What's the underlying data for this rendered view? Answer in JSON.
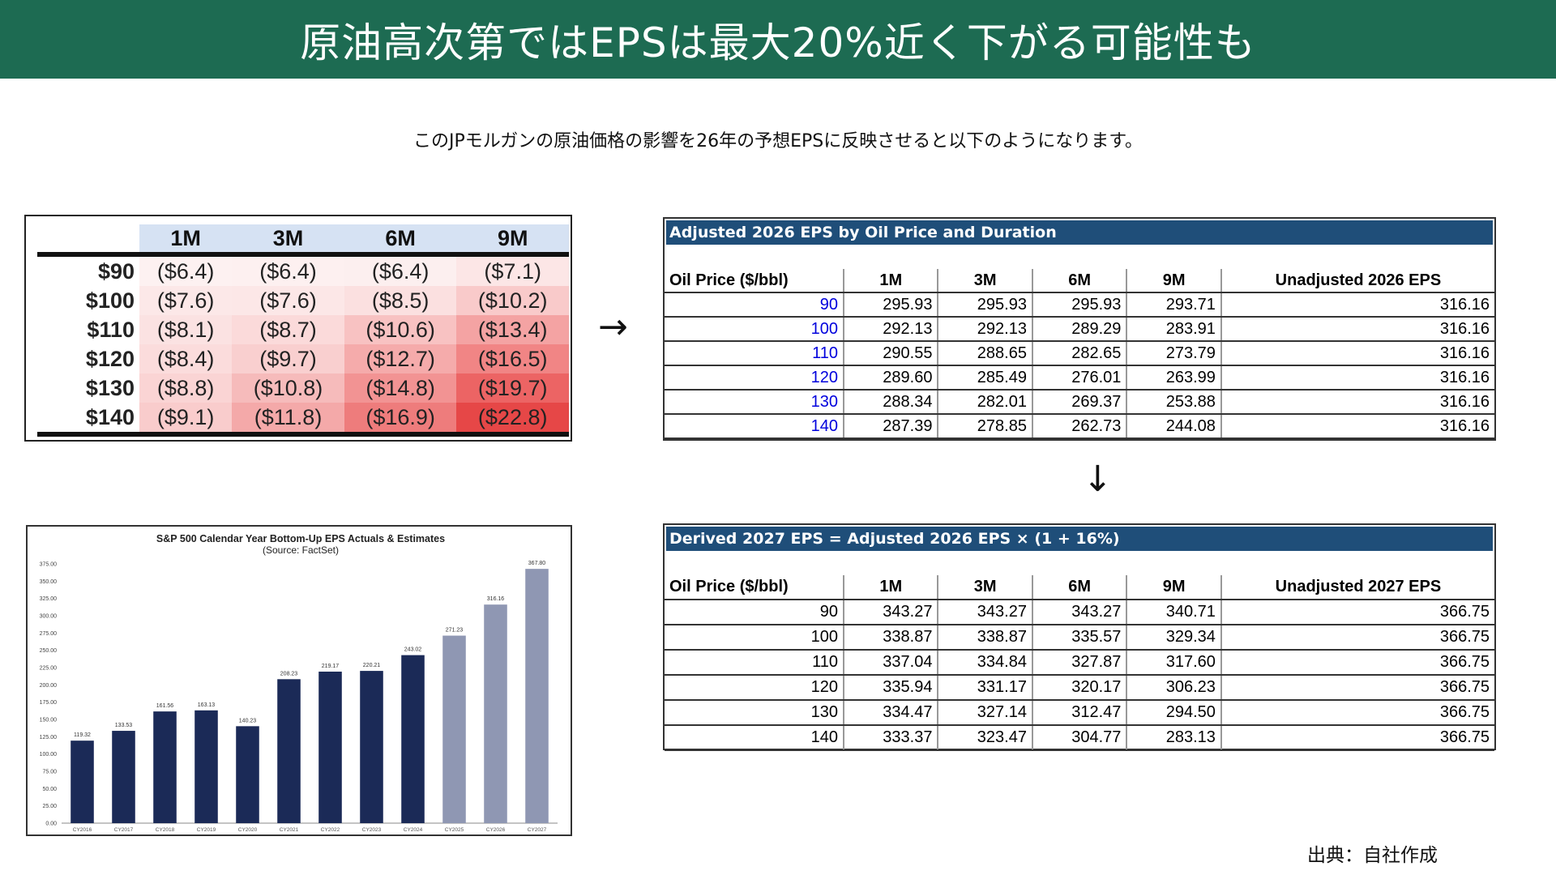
{
  "title": "原油高次第ではEPSは最大20%近く下がる可能性も",
  "subtitle": "このJPモルガンの原油価格の影響を26年の予想EPSに反映させると以下のようになります。",
  "arrows": {
    "right": "→",
    "down": "↓"
  },
  "sensitivity": {
    "headers": [
      "1M",
      "3M",
      "6M",
      "9M"
    ],
    "rows": [
      {
        "label": "$90",
        "cells": [
          "($6.4)",
          "($6.4)",
          "($6.4)",
          "($7.1)"
        ]
      },
      {
        "label": "$100",
        "cells": [
          "($7.6)",
          "($7.6)",
          "($8.5)",
          "($10.2)"
        ]
      },
      {
        "label": "$110",
        "cells": [
          "($8.1)",
          "($8.7)",
          "($10.6)",
          "($13.4)"
        ]
      },
      {
        "label": "$120",
        "cells": [
          "($8.4)",
          "($9.7)",
          "($12.7)",
          "($16.5)"
        ]
      },
      {
        "label": "$130",
        "cells": [
          "($8.8)",
          "($10.8)",
          "($14.8)",
          "($19.7)"
        ]
      },
      {
        "label": "$140",
        "cells": [
          "($9.1)",
          "($11.8)",
          "($16.9)",
          "($22.8)"
        ]
      }
    ],
    "heat_colors": [
      [
        "#fdf1f1",
        "#fdf0f0",
        "#fcefef",
        "#fce6e6"
      ],
      [
        "#fce8e8",
        "#fce7e7",
        "#fbe0e0",
        "#f9caca"
      ],
      [
        "#fbe2e2",
        "#fbdada",
        "#f8c2c2",
        "#f4a3a3"
      ],
      [
        "#fbdcdc",
        "#f9cfcf",
        "#f5abab",
        "#f18585"
      ],
      [
        "#fad4d4",
        "#f6bbbb",
        "#f29393",
        "#ec6464"
      ],
      [
        "#f9cccc",
        "#f4a9a9",
        "#ee7c7c",
        "#e64747"
      ]
    ]
  },
  "adjusted_2026": {
    "header": "Adjusted 2026 EPS by Oil Price and Duration",
    "columns": [
      "Oil Price ($/bbl)",
      "1M",
      "3M",
      "6M",
      "9M",
      "Unadjusted 2026 EPS"
    ],
    "rows": [
      [
        "90",
        "295.93",
        "295.93",
        "295.93",
        "293.71",
        "316.16"
      ],
      [
        "100",
        "292.13",
        "292.13",
        "289.29",
        "283.91",
        "316.16"
      ],
      [
        "110",
        "290.55",
        "288.65",
        "282.65",
        "273.79",
        "316.16"
      ],
      [
        "120",
        "289.60",
        "285.49",
        "276.01",
        "263.99",
        "316.16"
      ],
      [
        "130",
        "288.34",
        "282.01",
        "269.37",
        "253.88",
        "316.16"
      ],
      [
        "140",
        "287.39",
        "278.85",
        "262.73",
        "244.08",
        "316.16"
      ]
    ]
  },
  "derived_2027": {
    "header": "Derived 2027 EPS = Adjusted 2026 EPS × (1 + 16%)",
    "columns": [
      "Oil Price ($/bbl)",
      "1M",
      "3M",
      "6M",
      "9M",
      "Unadjusted 2027 EPS"
    ],
    "rows": [
      [
        "90",
        "343.27",
        "343.27",
        "343.27",
        "340.71",
        "366.75"
      ],
      [
        "100",
        "338.87",
        "338.87",
        "335.57",
        "329.34",
        "366.75"
      ],
      [
        "110",
        "337.04",
        "334.84",
        "327.87",
        "317.60",
        "366.75"
      ],
      [
        "120",
        "335.94",
        "331.17",
        "320.17",
        "306.23",
        "366.75"
      ],
      [
        "130",
        "334.47",
        "327.14",
        "312.47",
        "294.50",
        "366.75"
      ],
      [
        "140",
        "333.37",
        "323.47",
        "304.77",
        "283.13",
        "366.75"
      ]
    ]
  },
  "chart_data": {
    "type": "bar",
    "title": "S&P 500 Calendar Year Bottom-Up EPS Actuals & Estimates",
    "subtitle": "(Source: FactSet)",
    "categories": [
      "CY2016",
      "CY2017",
      "CY2018",
      "CY2019",
      "CY2020",
      "CY2021",
      "CY2022",
      "CY2023",
      "CY2024",
      "CY2025",
      "CY2026",
      "CY2027"
    ],
    "values": [
      119.32,
      133.53,
      161.56,
      163.13,
      140.23,
      208.23,
      219.17,
      220.21,
      243.02,
      271.23,
      316.16,
      367.8
    ],
    "value_labels": [
      "119.32",
      "133.53",
      "161.56",
      "163.13",
      "140.23",
      "208.23",
      "219.17",
      "220.21",
      "243.02",
      "271.23",
      "316.16",
      "367.80"
    ],
    "is_estimate": [
      false,
      false,
      false,
      false,
      false,
      false,
      false,
      false,
      false,
      true,
      true,
      true
    ],
    "yticks": [
      "0.00",
      "25.00",
      "50.00",
      "75.00",
      "100.00",
      "125.00",
      "150.00",
      "175.00",
      "200.00",
      "225.00",
      "250.00",
      "275.00",
      "300.00",
      "325.00",
      "350.00",
      "375.00"
    ],
    "ylim": [
      0,
      375
    ],
    "colors": {
      "actual": "#1b2a57",
      "estimate": "#8f97b3"
    }
  },
  "source": "出典：自社作成"
}
